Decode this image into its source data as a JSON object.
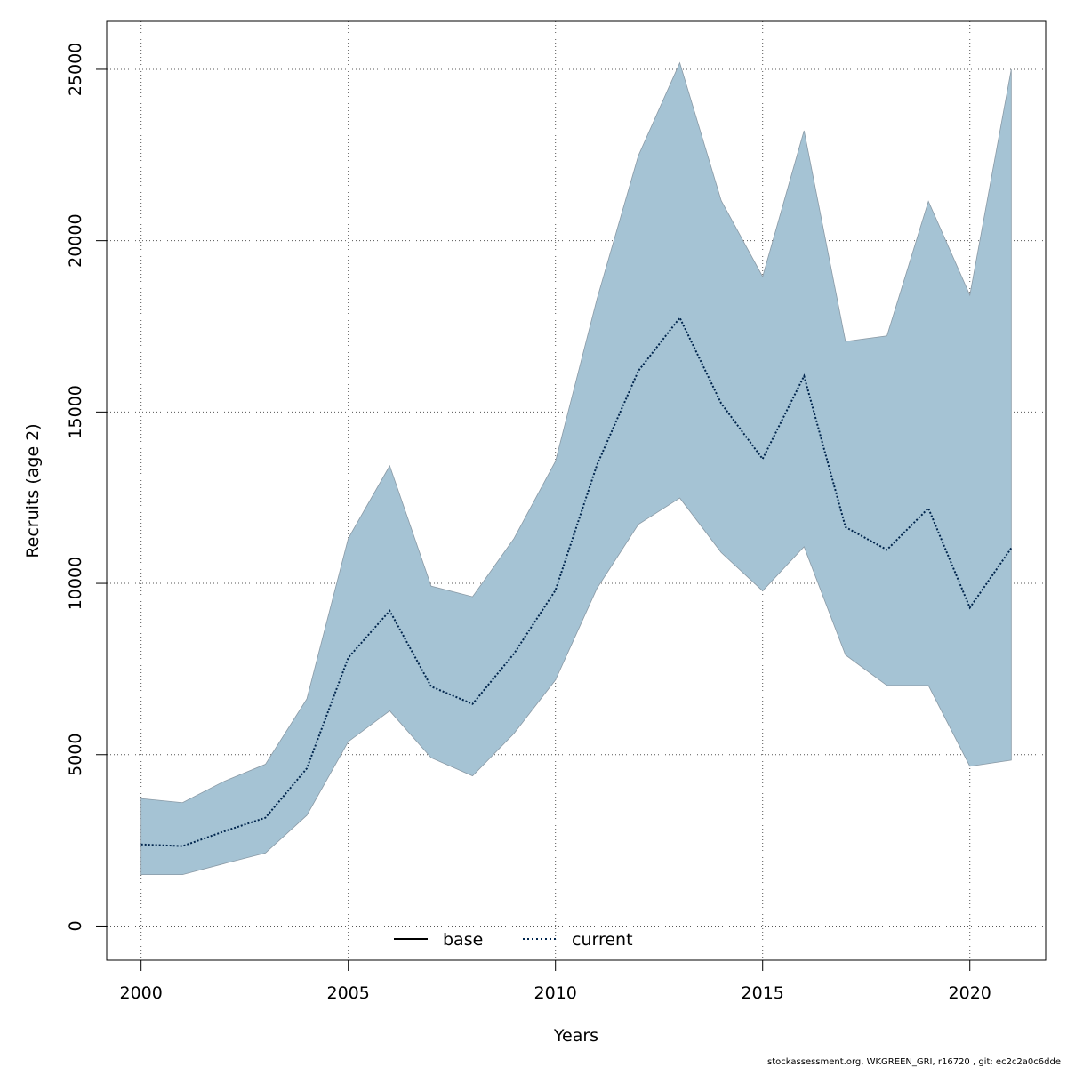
{
  "chart_data": {
    "type": "area",
    "xlabel": "Years",
    "ylabel": "Recruits (age 2)",
    "xlim": [
      1999.17,
      2021.83
    ],
    "ylim": [
      -1000,
      26400
    ],
    "x_ticks": [
      2000,
      2005,
      2010,
      2015,
      2020
    ],
    "y_ticks": [
      0,
      5000,
      10000,
      15000,
      20000,
      25000
    ],
    "grid": true,
    "legend_position": "bottom-center",
    "x": [
      2000,
      2001,
      2002,
      2003,
      2004,
      2005,
      2006,
      2007,
      2008,
      2009,
      2010,
      2011,
      2012,
      2013,
      2014,
      2015,
      2016,
      2017,
      2018,
      2019,
      2020,
      2021
    ],
    "series": [
      {
        "name": "current",
        "line_style": "dotted",
        "color": "#00254d",
        "values": [
          2380,
          2330,
          2760,
          3160,
          4600,
          7830,
          9200,
          6990,
          6480,
          7950,
          9800,
          13450,
          16200,
          17750,
          15250,
          13630,
          16050,
          11640,
          10980,
          12190,
          9290,
          11030
        ]
      },
      {
        "name": "confidence band",
        "band_color": "#a5c3d4",
        "band_edge": "#8a9aa6",
        "lower": [
          1500,
          1500,
          1820,
          2130,
          3230,
          5380,
          6280,
          4910,
          4380,
          5620,
          7180,
          9850,
          11720,
          12490,
          10900,
          9780,
          11070,
          7910,
          7020,
          7020,
          4660,
          4840
        ],
        "upper": [
          3720,
          3600,
          4220,
          4720,
          6630,
          11310,
          13430,
          9920,
          9610,
          11310,
          13560,
          18290,
          22480,
          25190,
          21170,
          18950,
          23210,
          17060,
          17220,
          21150,
          18410,
          25000
        ]
      }
    ],
    "legend": [
      {
        "label": "base",
        "style": "solid",
        "color": "#000000"
      },
      {
        "label": "current",
        "style": "dotted",
        "color": "#00254d"
      }
    ]
  },
  "footer": "stockassessment.org, WKGREEN_GRI, r16720 , git: ec2c2a0c6dde"
}
